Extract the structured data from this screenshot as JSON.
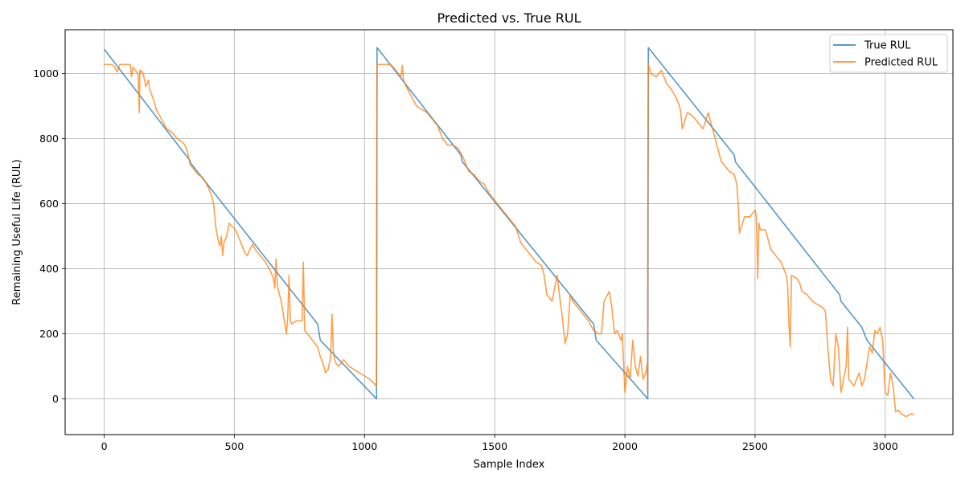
{
  "chart_data": {
    "type": "line",
    "title": "Predicted vs. True RUL",
    "xlabel": "Sample Index",
    "ylabel": "Remaining Useful Life (RUL)",
    "xlim": [
      -150,
      3260
    ],
    "ylim": [
      -110,
      1135
    ],
    "xticks": [
      0,
      500,
      1000,
      1500,
      2000,
      2500,
      3000
    ],
    "yticks": [
      0,
      200,
      400,
      600,
      800,
      1000
    ],
    "grid": true,
    "legend_position": "top-right",
    "series": [
      {
        "name": "True RUL",
        "color": "#1f77b4",
        "x": [
          0,
          330,
          332,
          820,
          830,
          1046,
          1047,
          1048,
          1370,
          1375,
          1880,
          1890,
          2088,
          2089,
          2090,
          2420,
          2425,
          2825,
          2830,
          2910,
          2930,
          3110
        ],
        "y": [
          1075,
          732,
          725,
          230,
          180,
          0,
          540,
          1080,
          750,
          730,
          230,
          180,
          0,
          540,
          1080,
          750,
          728,
          320,
          300,
          220,
          180,
          0
        ]
      },
      {
        "name": "Predicted RUL",
        "color": "#ff7f0e",
        "x": [
          0,
          30,
          40,
          50,
          60,
          100,
          105,
          110,
          120,
          130,
          135,
          137,
          139,
          141,
          150,
          160,
          170,
          175,
          180,
          190,
          200,
          220,
          240,
          260,
          280,
          300,
          310,
          320,
          330,
          340,
          350,
          360,
          380,
          400,
          410,
          420,
          425,
          430,
          440,
          445,
          450,
          455,
          460,
          470,
          480,
          490,
          500,
          510,
          520,
          530,
          540,
          550,
          560,
          570,
          580,
          590,
          600,
          620,
          640,
          650,
          655,
          660,
          665,
          670,
          680,
          690,
          700,
          705,
          710,
          715,
          720,
          740,
          760,
          765,
          770,
          780,
          790,
          800,
          820,
          830,
          840,
          850,
          860,
          870,
          875,
          880,
          885,
          890,
          900,
          920,
          940,
          960,
          980,
          1000,
          1020,
          1040,
          1046,
          1047,
          1048,
          1050,
          1100,
          1110,
          1130,
          1140,
          1145,
          1150,
          1160,
          1180,
          1200,
          1240,
          1280,
          1300,
          1320,
          1340,
          1360,
          1380,
          1400,
          1420,
          1440,
          1460,
          1480,
          1500,
          1520,
          1540,
          1560,
          1580,
          1600,
          1620,
          1640,
          1660,
          1680,
          1690,
          1700,
          1720,
          1730,
          1740,
          1750,
          1760,
          1770,
          1780,
          1790,
          1800,
          1820,
          1840,
          1860,
          1880,
          1900,
          1910,
          1920,
          1940,
          1950,
          1960,
          1970,
          1980,
          1985,
          1990,
          2000,
          2010,
          2020,
          2030,
          2040,
          2050,
          2060,
          2070,
          2080,
          2086,
          2087,
          2088,
          2090,
          2100,
          2120,
          2140,
          2160,
          2180,
          2200,
          2210,
          2215,
          2220,
          2240,
          2260,
          2280,
          2300,
          2320,
          2340,
          2360,
          2370,
          2380,
          2400,
          2420,
          2430,
          2435,
          2440,
          2460,
          2480,
          2500,
          2505,
          2510,
          2515,
          2520,
          2540,
          2560,
          2580,
          2600,
          2620,
          2625,
          2630,
          2635,
          2640,
          2660,
          2670,
          2680,
          2700,
          2720,
          2740,
          2760,
          2770,
          2780,
          2790,
          2800,
          2810,
          2820,
          2830,
          2840,
          2850,
          2855,
          2860,
          2880,
          2900,
          2910,
          2920,
          2940,
          2950,
          2960,
          2970,
          2980,
          2990,
          3000,
          3010,
          3020,
          3030,
          3040,
          3050,
          3060,
          3070,
          3080,
          3090,
          3100,
          3110
        ],
        "y": [
          1028,
          1028,
          1020,
          1005,
          1028,
          1028,
          990,
          1020,
          1010,
          1000,
          880,
          1010,
          1000,
          1010,
          1000,
          960,
          980,
          950,
          940,
          920,
          890,
          860,
          830,
          820,
          800,
          790,
          780,
          760,
          720,
          710,
          700,
          690,
          680,
          650,
          630,
          600,
          560,
          520,
          480,
          470,
          500,
          440,
          480,
          500,
          540,
          530,
          525,
          510,
          490,
          470,
          450,
          440,
          460,
          475,
          460,
          450,
          440,
          420,
          390,
          370,
          340,
          430,
          350,
          330,
          300,
          250,
          200,
          250,
          380,
          240,
          230,
          240,
          240,
          420,
          210,
          200,
          190,
          180,
          160,
          130,
          110,
          80,
          90,
          130,
          260,
          150,
          120,
          110,
          100,
          120,
          100,
          90,
          80,
          70,
          60,
          45,
          40,
          540,
          1028,
          1028,
          1028,
          1020,
          1000,
          990,
          1025,
          980,
          960,
          930,
          900,
          880,
          840,
          800,
          780,
          780,
          770,
          740,
          700,
          690,
          670,
          660,
          630,
          610,
          590,
          570,
          550,
          530,
          480,
          460,
          440,
          420,
          410,
          380,
          320,
          300,
          340,
          380,
          310,
          250,
          170,
          200,
          320,
          300,
          280,
          260,
          240,
          210,
          200,
          200,
          300,
          330,
          280,
          200,
          210,
          190,
          180,
          200,
          20,
          100,
          60,
          180,
          100,
          70,
          130,
          60,
          80,
          110,
          20,
          600,
          1028,
          1000,
          990,
          1010,
          970,
          950,
          920,
          900,
          880,
          830,
          880,
          870,
          850,
          830,
          880,
          820,
          760,
          730,
          720,
          700,
          690,
          660,
          600,
          510,
          560,
          560,
          580,
          560,
          370,
          540,
          520,
          520,
          460,
          440,
          420,
          380,
          350,
          230,
          160,
          380,
          370,
          360,
          330,
          320,
          300,
          290,
          280,
          270,
          150,
          60,
          40,
          200,
          160,
          20,
          60,
          100,
          220,
          60,
          40,
          80,
          40,
          60,
          160,
          140,
          210,
          200,
          220,
          180,
          20,
          10,
          80,
          40,
          -40,
          -35,
          -45,
          -50,
          -55,
          -50,
          -45,
          -50
        ]
      }
    ]
  },
  "legend": {
    "items": [
      "True RUL",
      "Predicted RUL"
    ]
  }
}
